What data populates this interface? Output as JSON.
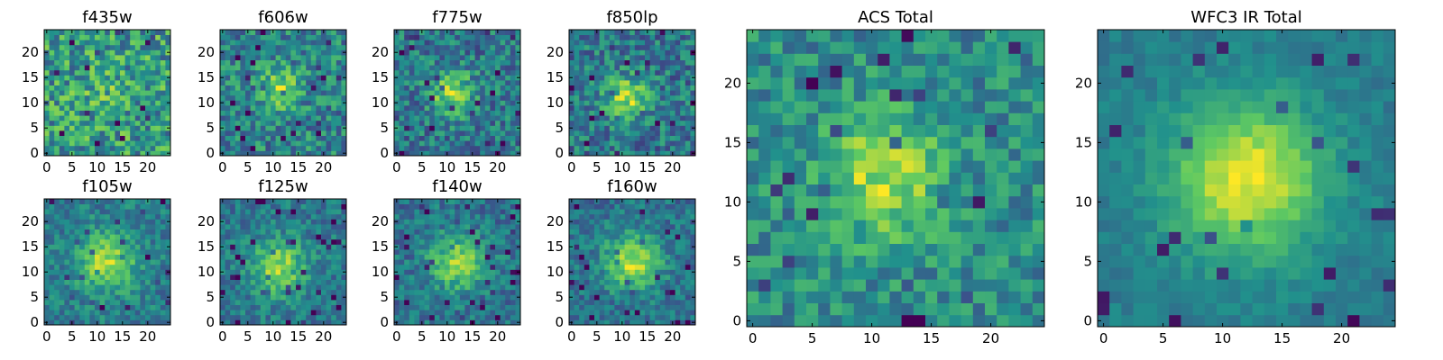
{
  "chart_data": [
    {
      "type": "heatmap",
      "title": "f435w",
      "grid": false,
      "source_image": "seed:11,cx:12,cy:12,sigma:3,amp:0.1,noise:0.5,base:0.45",
      "x_ticks": [
        "0",
        "5",
        "10",
        "15",
        "20"
      ],
      "y_ticks": [
        "0",
        "5",
        "10",
        "15",
        "20"
      ],
      "xlim": [
        -0.5,
        24.5
      ],
      "ylim": [
        -0.5,
        24.5
      ],
      "colormap": "viridis",
      "colormap_stops": [
        "#440154",
        "#3b528b",
        "#21918c",
        "#5ec962",
        "#fde725"
      ]
    },
    {
      "type": "heatmap",
      "title": "f606w",
      "grid": false,
      "x_ticks": [
        "0",
        "5",
        "10",
        "15",
        "20"
      ],
      "y_ticks": [
        "0",
        "5",
        "10",
        "15",
        "20"
      ],
      "xlim": [
        -0.5,
        24.5
      ],
      "ylim": [
        -0.5,
        24.5
      ],
      "colormap": "viridis",
      "colormap_stops": [
        "#440154",
        "#3b528b",
        "#21918c",
        "#5ec962",
        "#fde725"
      ]
    },
    {
      "type": "heatmap",
      "title": "f775w",
      "grid": false,
      "x_ticks": [
        "0",
        "5",
        "10",
        "15",
        "20"
      ],
      "y_ticks": [
        "0",
        "5",
        "10",
        "15",
        "20"
      ],
      "xlim": [
        -0.5,
        24.5
      ],
      "ylim": [
        -0.5,
        24.5
      ],
      "colormap": "viridis",
      "colormap_stops": [
        "#440154",
        "#3b528b",
        "#21918c",
        "#5ec962",
        "#fde725"
      ]
    },
    {
      "type": "heatmap",
      "title": "f850lp",
      "grid": false,
      "x_ticks": [
        "0",
        "5",
        "10",
        "15",
        "20"
      ],
      "y_ticks": [
        "0",
        "5",
        "10",
        "15",
        "20"
      ],
      "xlim": [
        -0.5,
        24.5
      ],
      "ylim": [
        -0.5,
        24.5
      ],
      "colormap": "viridis",
      "colormap_stops": [
        "#440154",
        "#3b528b",
        "#21918c",
        "#5ec962",
        "#fde725"
      ]
    },
    {
      "type": "heatmap",
      "title": "f105w",
      "grid": false,
      "x_ticks": [
        "0",
        "5",
        "10",
        "15",
        "20"
      ],
      "y_ticks": [
        "0",
        "5",
        "10",
        "15",
        "20"
      ],
      "xlim": [
        -0.5,
        24.5
      ],
      "ylim": [
        -0.5,
        24.5
      ],
      "colormap": "viridis",
      "colormap_stops": [
        "#440154",
        "#3b528b",
        "#21918c",
        "#5ec962",
        "#fde725"
      ]
    },
    {
      "type": "heatmap",
      "title": "f125w",
      "grid": false,
      "x_ticks": [
        "0",
        "5",
        "10",
        "15",
        "20"
      ],
      "y_ticks": [
        "0",
        "5",
        "10",
        "15",
        "20"
      ],
      "xlim": [
        -0.5,
        24.5
      ],
      "ylim": [
        -0.5,
        24.5
      ],
      "colormap": "viridis",
      "colormap_stops": [
        "#440154",
        "#3b528b",
        "#21918c",
        "#5ec962",
        "#fde725"
      ]
    },
    {
      "type": "heatmap",
      "title": "f140w",
      "grid": false,
      "x_ticks": [
        "0",
        "5",
        "10",
        "15",
        "20"
      ],
      "y_ticks": [
        "0",
        "5",
        "10",
        "15",
        "20"
      ],
      "xlim": [
        -0.5,
        24.5
      ],
      "ylim": [
        -0.5,
        24.5
      ],
      "colormap": "viridis",
      "colormap_stops": [
        "#440154",
        "#3b528b",
        "#21918c",
        "#5ec962",
        "#fde725"
      ]
    },
    {
      "type": "heatmap",
      "title": "f160w",
      "grid": false,
      "x_ticks": [
        "0",
        "5",
        "10",
        "15",
        "20"
      ],
      "y_ticks": [
        "0",
        "5",
        "10",
        "15",
        "20"
      ],
      "xlim": [
        -0.5,
        24.5
      ],
      "ylim": [
        -0.5,
        24.5
      ],
      "colormap": "viridis",
      "colormap_stops": [
        "#440154",
        "#3b528b",
        "#21918c",
        "#5ec962",
        "#fde725"
      ]
    },
    {
      "type": "heatmap",
      "title": "ACS Total",
      "grid": false,
      "x_ticks": [
        "0",
        "5",
        "10",
        "15",
        "20"
      ],
      "y_ticks": [
        "0",
        "5",
        "10",
        "15",
        "20"
      ],
      "xlim": [
        -0.5,
        24.5
      ],
      "ylim": [
        -0.5,
        24.5
      ],
      "colormap": "viridis",
      "colormap_stops": [
        "#440154",
        "#3b528b",
        "#21918c",
        "#5ec962",
        "#fde725"
      ]
    },
    {
      "type": "heatmap",
      "title": "WFC3 IR Total",
      "grid": false,
      "x_ticks": [
        "0",
        "5",
        "10",
        "15",
        "20"
      ],
      "y_ticks": [
        "0",
        "5",
        "10",
        "15",
        "20"
      ],
      "xlim": [
        -0.5,
        24.5
      ],
      "ylim": [
        -0.5,
        24.5
      ],
      "colormap": "viridis",
      "colormap_stops": [
        "#440154",
        "#3b528b",
        "#21918c",
        "#5ec962",
        "#fde725"
      ]
    }
  ]
}
